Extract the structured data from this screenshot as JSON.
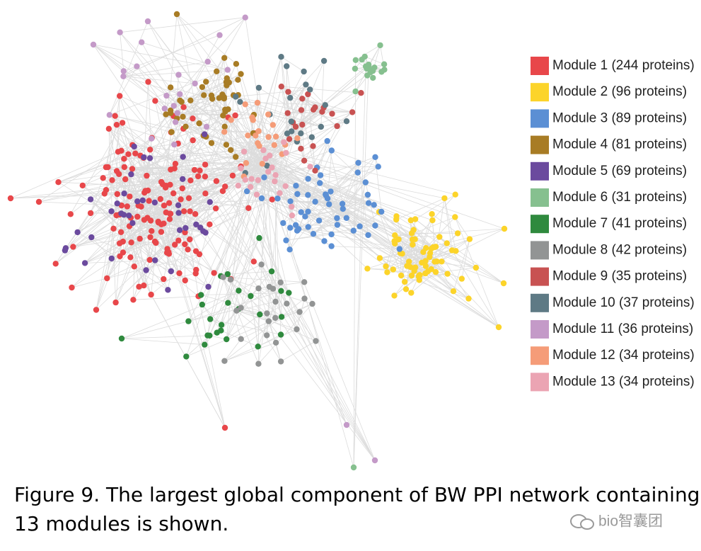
{
  "legend": {
    "items": [
      {
        "label": "Module 1 (244 proteins)",
        "color": "#e8474a"
      },
      {
        "label": "Module 2 (96 proteins)",
        "color": "#fcd42a"
      },
      {
        "label": "Module 3 (89 proteins)",
        "color": "#5b8fd4"
      },
      {
        "label": "Module 4 (81 proteins)",
        "color": "#a87c25"
      },
      {
        "label": "Module 5 (69 proteins)",
        "color": "#6b4a9e"
      },
      {
        "label": "Module 6 (31 proteins)",
        "color": "#86c08f"
      },
      {
        "label": "Module 7 (41 proteins)",
        "color": "#2f8a3e"
      },
      {
        "label": "Module 8 (42 proteins)",
        "color": "#929494"
      },
      {
        "label": "Module 9 (35 proteins)",
        "color": "#c85252"
      },
      {
        "label": "Module 10 (37 proteins)",
        "color": "#5e7a85"
      },
      {
        "label": "Module 11 (36 proteins)",
        "color": "#c49ac8"
      },
      {
        "label": "Module 12 (34 proteins)",
        "color": "#f59c78"
      },
      {
        "label": "Module 13 (34 proteins)",
        "color": "#eba4b3"
      }
    ]
  },
  "caption": {
    "lines": [
      "Figure 9. The largest global component of BW PPI network containing",
      "13 modules is shown."
    ]
  },
  "watermark": "bio智囊团"
}
